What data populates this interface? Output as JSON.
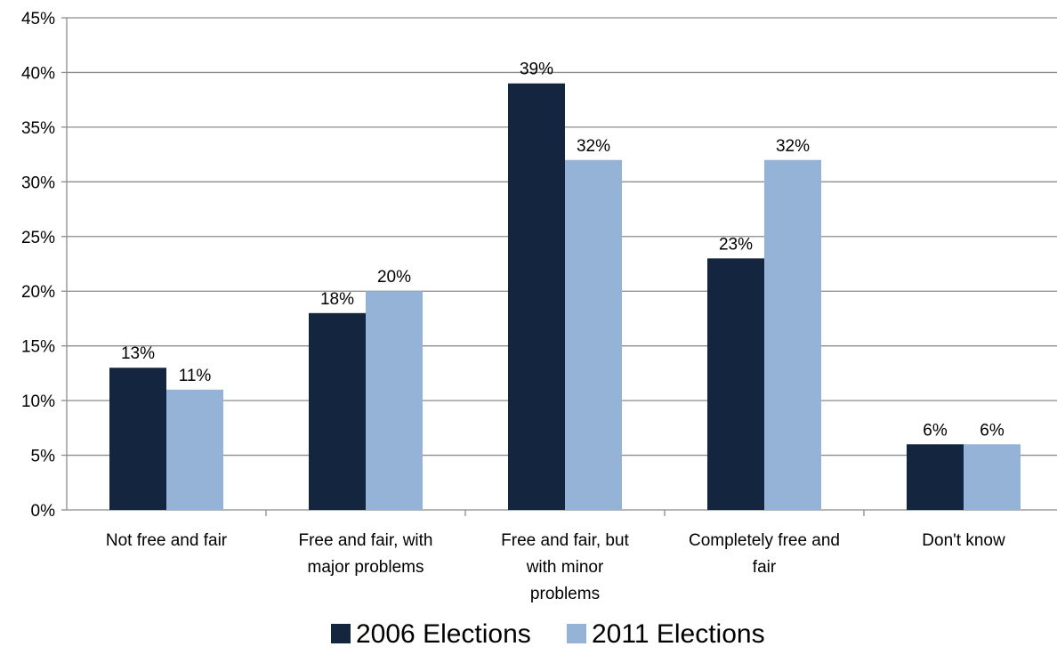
{
  "chart_data": {
    "type": "bar",
    "categories": [
      [
        "Not free and fair"
      ],
      [
        "Free and fair, with",
        "major problems"
      ],
      [
        "Free and fair, but",
        "with minor",
        "problems"
      ],
      [
        "Completely free and",
        "fair"
      ],
      [
        "Don't know"
      ]
    ],
    "series": [
      {
        "name": "2006 Elections",
        "values": [
          13,
          18,
          39,
          23,
          6
        ],
        "labels": [
          "13%",
          "18%",
          "39%",
          "23%",
          "6%"
        ],
        "color": "#14263f"
      },
      {
        "name": "2011 Elections",
        "values": [
          11,
          20,
          32,
          32,
          6
        ],
        "labels": [
          "11%",
          "20%",
          "32%",
          "32%",
          "6%"
        ],
        "color": "#95b3d7"
      }
    ],
    "y_ticks": [
      {
        "value": 0,
        "label": "0%"
      },
      {
        "value": 5,
        "label": "5%"
      },
      {
        "value": 10,
        "label": "10%"
      },
      {
        "value": 15,
        "label": "15%"
      },
      {
        "value": 20,
        "label": "20%"
      },
      {
        "value": 25,
        "label": "25%"
      },
      {
        "value": 30,
        "label": "30%"
      },
      {
        "value": 35,
        "label": "35%"
      },
      {
        "value": 40,
        "label": "40%"
      },
      {
        "value": 45,
        "label": "45%"
      }
    ],
    "ylim": [
      0,
      45
    ],
    "grid": true,
    "gridline_color": "#8c8c8c",
    "legend_position": "bottom"
  }
}
